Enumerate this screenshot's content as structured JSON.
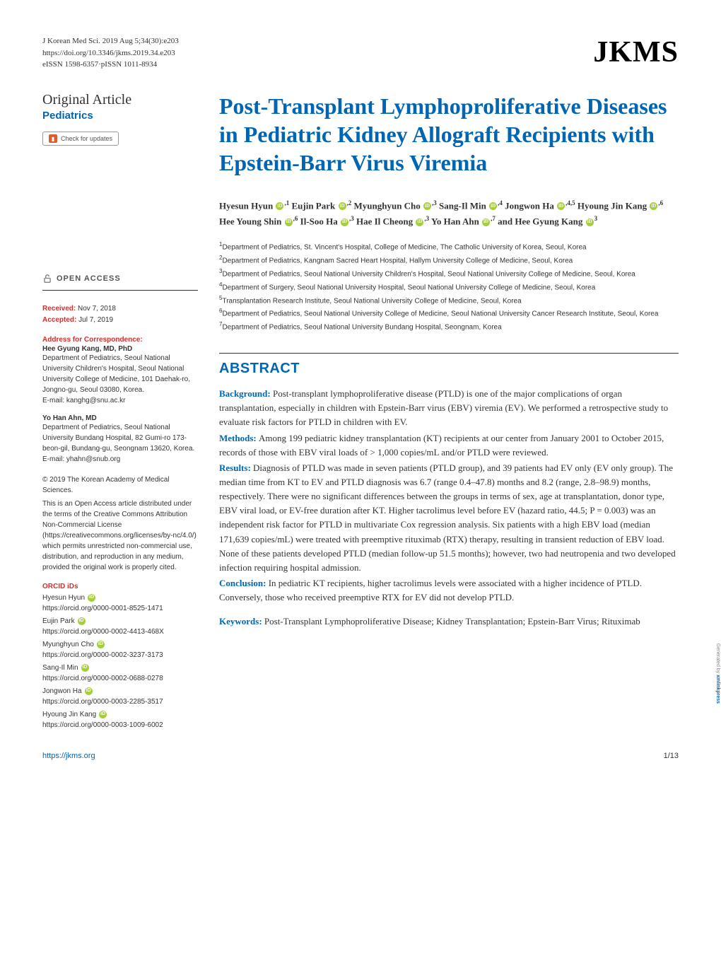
{
  "citation": {
    "line1": "J Korean Med Sci. 2019 Aug 5;34(30):e203",
    "line2": "https://doi.org/10.3346/jkms.2019.34.e203",
    "line3": "eISSN 1598-6357·pISSN 1011-8934"
  },
  "logo": "JKMS",
  "article_type": "Original Article",
  "article_category": "Pediatrics",
  "check_updates": "Check for updates",
  "open_access": "OPEN ACCESS",
  "received": {
    "label": "Received:",
    "value": " Nov 7, 2018"
  },
  "accepted": {
    "label": "Accepted:",
    "value": " Jul 7, 2019"
  },
  "corr_heading": "Address for Correspondence:",
  "corr": [
    {
      "name": "Hee Gyung Kang, MD, PhD",
      "text": "Department of Pediatrics, Seoul National University Children's Hospital, Seoul National University College of Medicine, 101 Daehak-ro, Jongno-gu, Seoul 03080, Korea.",
      "email": "E-mail: kanghg@snu.ac.kr"
    },
    {
      "name": "Yo Han Ahn, MD",
      "text": "Department of Pediatrics, Seoul National University Bundang Hospital, 82 Gumi-ro 173-beon-gil, Bundang-gu, Seongnam 13620, Korea.",
      "email": "E-mail: yhahn@snub.org"
    }
  ],
  "copyright_line1": "© 2019 The Korean Academy of Medical Sciences.",
  "copyright_text": "This is an Open Access article distributed under the terms of the Creative Commons Attribution Non-Commercial License (https://creativecommons.org/licenses/by-nc/4.0/) which permits unrestricted non-commercial use, distribution, and reproduction in any medium, provided the original work is properly cited.",
  "orcid_heading": "ORCID iDs",
  "orcid": [
    {
      "name": "Hyesun Hyun",
      "url": "https://orcid.org/0000-0001-8525-1471"
    },
    {
      "name": "Eujin Park",
      "url": "https://orcid.org/0000-0002-4413-468X"
    },
    {
      "name": "Myunghyun Cho",
      "url": "https://orcid.org/0000-0002-3237-3173"
    },
    {
      "name": "Sang-Il Min",
      "url": "https://orcid.org/0000-0002-0688-0278"
    },
    {
      "name": "Jongwon Ha",
      "url": "https://orcid.org/0000-0003-2285-3517"
    },
    {
      "name": "Hyoung Jin Kang",
      "url": "https://orcid.org/0000-0003-1009-6002"
    }
  ],
  "title": "Post-Transplant Lymphoproliferative Diseases in Pediatric Kidney Allograft Recipients with Epstein-Barr Virus Viremia",
  "authors": [
    {
      "name": "Hyesun Hyun",
      "aff": "1"
    },
    {
      "name": "Eujin Park",
      "aff": "2"
    },
    {
      "name": "Myunghyun Cho",
      "aff": "3"
    },
    {
      "name": "Sang-Il Min",
      "aff": "4"
    },
    {
      "name": "Jongwon Ha",
      "aff": "4,5"
    },
    {
      "name": "Hyoung Jin Kang",
      "aff": "6"
    },
    {
      "name": "Hee Young Shin",
      "aff": "6"
    },
    {
      "name": "Il-Soo Ha",
      "aff": "3"
    },
    {
      "name": "Hae Il Cheong",
      "aff": "3"
    },
    {
      "name": "Yo Han Ahn",
      "aff": "7"
    },
    {
      "name": "Hee Gyung Kang",
      "aff": "3"
    }
  ],
  "and": " and ",
  "affiliations": [
    "Department of Pediatrics, St. Vincent's Hospital, College of Medicine, The Catholic University of Korea, Seoul, Korea",
    "Department of Pediatrics, Kangnam Sacred Heart Hospital, Hallym University College of Medicine, Seoul, Korea",
    "Department of Pediatrics, Seoul National University Children's Hospital, Seoul National University College of Medicine, Seoul, Korea",
    "Department of Surgery, Seoul National University Hospital, Seoul National University College of Medicine, Seoul, Korea",
    "Transplantation Research Institute, Seoul National University College of Medicine, Seoul, Korea",
    "Department of Pediatrics, Seoul National University College of Medicine, Seoul National University Cancer Research Institute, Seoul, Korea",
    "Department of Pediatrics, Seoul National University Bundang Hospital, Seongnam, Korea"
  ],
  "abstract_heading": "ABSTRACT",
  "abstract": {
    "background_label": "Background: ",
    "background": "Post-transplant lymphoproliferative disease (PTLD) is one of the major complications of organ transplantation, especially in children with Epstein-Barr virus (EBV) viremia (EV). We performed a retrospective study to evaluate risk factors for PTLD in children with EV.",
    "methods_label": "Methods: ",
    "methods": "Among 199 pediatric kidney transplantation (KT) recipients at our center from January 2001 to October 2015, records of those with EBV viral loads of > 1,000 copies/mL and/or PTLD were reviewed.",
    "results_label": "Results: ",
    "results": "Diagnosis of PTLD was made in seven patients (PTLD group), and 39 patients had EV only (EV only group). The median time from KT to EV and PTLD diagnosis was 6.7 (range 0.4–47.8) months and 8.2 (range, 2.8–98.9) months, respectively. There were no significant differences between the groups in terms of sex, age at transplantation, donor type, EBV viral load, or EV-free duration after KT. Higher tacrolimus level before EV (hazard ratio, 44.5; P = 0.003) was an independent risk factor for PTLD in multivariate Cox regression analysis. Six patients with a high EBV load (median 171,639 copies/mL) were treated with preemptive rituximab (RTX) therapy, resulting in transient reduction of EBV load. None of these patients developed PTLD (median follow-up 51.5 months); however, two had neutropenia and two developed infection requiring hospital admission.",
    "conclusion_label": "Conclusion: ",
    "conclusion": "In pediatric KT recipients, higher tacrolimus levels were associated with a higher incidence of PTLD. Conversely, those who received preemptive RTX for EV did not develop PTLD."
  },
  "keywords_label": "Keywords: ",
  "keywords": "Post-Transplant Lymphoproliferative Disease; Kidney Transplantation; Epstein-Barr Virus; Rituximab",
  "footer_url": "https://jkms.org",
  "footer_page": "1/13",
  "watermark": {
    "prefix": "Generated by ",
    "brand": "xmlinkpress"
  },
  "colors": {
    "brand_blue": "#0066b3",
    "label_red": "#d32f2f",
    "orcid_green": "#a6ce39",
    "crossref_orange": "#d95f2b"
  }
}
